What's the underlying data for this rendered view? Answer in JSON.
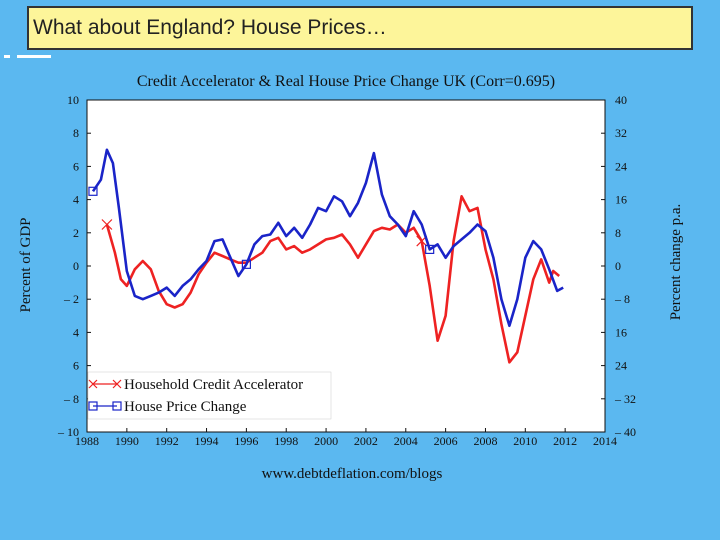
{
  "slide": {
    "title": "What about England? House Prices…"
  },
  "chart_data": {
    "type": "line",
    "title": "Credit Accelerator & Real House Price Change UK (Corr=0.695)",
    "xlabel": "",
    "ylabel": "Percent of GDP",
    "y2label": "Percent change p.a.",
    "xlim": [
      1988,
      2014
    ],
    "ylim": [
      -10,
      10
    ],
    "y2lim": [
      -40,
      40
    ],
    "xticks": [
      "1988",
      "1990",
      "1992",
      "1994",
      "1996",
      "1998",
      "2000",
      "2002",
      "2004",
      "2006",
      "2008",
      "2010",
      "2012",
      "2014"
    ],
    "yticks": [
      "10",
      "8",
      "6",
      "4",
      "2",
      "0",
      "– 2",
      "4",
      "6",
      "– 8",
      "– 10"
    ],
    "y2ticks": [
      "40",
      "32",
      "24",
      "16",
      "8",
      "0",
      "– 8",
      "16",
      "24",
      "– 32",
      "– 40"
    ],
    "footer": "www.debtdeflation.com/blogs",
    "colors": {
      "credit": "#ee2222",
      "house": "#1a24c8"
    },
    "legend_position": "bottom-left",
    "series": [
      {
        "name": "Household Credit Accelerator",
        "axis": "left",
        "marker": "x",
        "points": [
          [
            1989.0,
            2.5
          ],
          [
            1989.4,
            0.8
          ],
          [
            1989.7,
            -0.8
          ],
          [
            1990.0,
            -1.2
          ],
          [
            1990.4,
            -0.2
          ],
          [
            1990.8,
            0.3
          ],
          [
            1991.2,
            -0.2
          ],
          [
            1991.6,
            -1.5
          ],
          [
            1992.0,
            -2.3
          ],
          [
            1992.4,
            -2.5
          ],
          [
            1992.8,
            -2.3
          ],
          [
            1993.2,
            -1.6
          ],
          [
            1993.6,
            -0.5
          ],
          [
            1994.0,
            0.2
          ],
          [
            1994.4,
            0.8
          ],
          [
            1994.8,
            0.6
          ],
          [
            1995.2,
            0.4
          ],
          [
            1995.6,
            0.2
          ],
          [
            1996.0,
            0.2
          ],
          [
            1996.4,
            0.5
          ],
          [
            1996.8,
            0.8
          ],
          [
            1997.2,
            1.5
          ],
          [
            1997.6,
            1.7
          ],
          [
            1998.0,
            1.0
          ],
          [
            1998.4,
            1.2
          ],
          [
            1998.8,
            0.8
          ],
          [
            1999.2,
            1.0
          ],
          [
            1999.6,
            1.3
          ],
          [
            2000.0,
            1.6
          ],
          [
            2000.4,
            1.7
          ],
          [
            2000.8,
            1.9
          ],
          [
            2001.2,
            1.3
          ],
          [
            2001.6,
            0.5
          ],
          [
            2002.0,
            1.3
          ],
          [
            2002.4,
            2.1
          ],
          [
            2002.8,
            2.3
          ],
          [
            2003.2,
            2.2
          ],
          [
            2003.6,
            2.5
          ],
          [
            2004.0,
            2.0
          ],
          [
            2004.4,
            2.3
          ],
          [
            2004.8,
            1.5
          ],
          [
            2005.2,
            -1.2
          ],
          [
            2005.6,
            -4.5
          ],
          [
            2006.0,
            -3.0
          ],
          [
            2006.4,
            1.5
          ],
          [
            2006.8,
            4.2
          ],
          [
            2007.2,
            3.3
          ],
          [
            2007.6,
            3.5
          ],
          [
            2008.0,
            1.0
          ],
          [
            2008.4,
            -0.8
          ],
          [
            2008.8,
            -3.5
          ],
          [
            2009.2,
            -5.8
          ],
          [
            2009.6,
            -5.2
          ],
          [
            2010.0,
            -3.0
          ],
          [
            2010.4,
            -0.8
          ],
          [
            2010.8,
            0.4
          ],
          [
            2011.2,
            -1.0
          ],
          [
            2011.4,
            -0.3
          ],
          [
            2011.7,
            -0.6
          ]
        ]
      },
      {
        "name": "House Price Change",
        "axis": "left",
        "marker": "square",
        "points": [
          [
            1988.3,
            4.5
          ],
          [
            1988.7,
            5.2
          ],
          [
            1989.0,
            7.0
          ],
          [
            1989.3,
            6.2
          ],
          [
            1989.6,
            3.5
          ],
          [
            1990.0,
            -0.3
          ],
          [
            1990.4,
            -1.8
          ],
          [
            1990.8,
            -2.0
          ],
          [
            1991.2,
            -1.8
          ],
          [
            1991.6,
            -1.6
          ],
          [
            1992.0,
            -1.3
          ],
          [
            1992.4,
            -1.8
          ],
          [
            1992.8,
            -1.2
          ],
          [
            1993.2,
            -0.8
          ],
          [
            1993.6,
            -0.2
          ],
          [
            1994.0,
            0.3
          ],
          [
            1994.4,
            1.5
          ],
          [
            1994.8,
            1.6
          ],
          [
            1995.2,
            0.5
          ],
          [
            1995.6,
            -0.6
          ],
          [
            1996.0,
            0.1
          ],
          [
            1996.4,
            1.3
          ],
          [
            1996.8,
            1.8
          ],
          [
            1997.2,
            1.9
          ],
          [
            1997.6,
            2.6
          ],
          [
            1998.0,
            1.8
          ],
          [
            1998.4,
            2.3
          ],
          [
            1998.8,
            1.7
          ],
          [
            1999.2,
            2.5
          ],
          [
            1999.6,
            3.5
          ],
          [
            2000.0,
            3.3
          ],
          [
            2000.4,
            4.2
          ],
          [
            2000.8,
            3.9
          ],
          [
            2001.2,
            3.0
          ],
          [
            2001.6,
            3.8
          ],
          [
            2002.0,
            5.0
          ],
          [
            2002.4,
            6.8
          ],
          [
            2002.8,
            4.3
          ],
          [
            2003.2,
            3.0
          ],
          [
            2003.6,
            2.5
          ],
          [
            2004.0,
            1.8
          ],
          [
            2004.4,
            3.3
          ],
          [
            2004.8,
            2.5
          ],
          [
            2005.2,
            1.0
          ],
          [
            2005.6,
            1.3
          ],
          [
            2006.0,
            0.5
          ],
          [
            2006.4,
            1.2
          ],
          [
            2006.8,
            1.6
          ],
          [
            2007.2,
            2.0
          ],
          [
            2007.6,
            2.5
          ],
          [
            2008.0,
            2.1
          ],
          [
            2008.4,
            0.5
          ],
          [
            2008.8,
            -2.0
          ],
          [
            2009.2,
            -3.6
          ],
          [
            2009.6,
            -2.0
          ],
          [
            2010.0,
            0.5
          ],
          [
            2010.4,
            1.5
          ],
          [
            2010.8,
            1.0
          ],
          [
            2011.2,
            -0.2
          ],
          [
            2011.6,
            -1.5
          ],
          [
            2011.9,
            -1.3
          ]
        ]
      }
    ]
  }
}
